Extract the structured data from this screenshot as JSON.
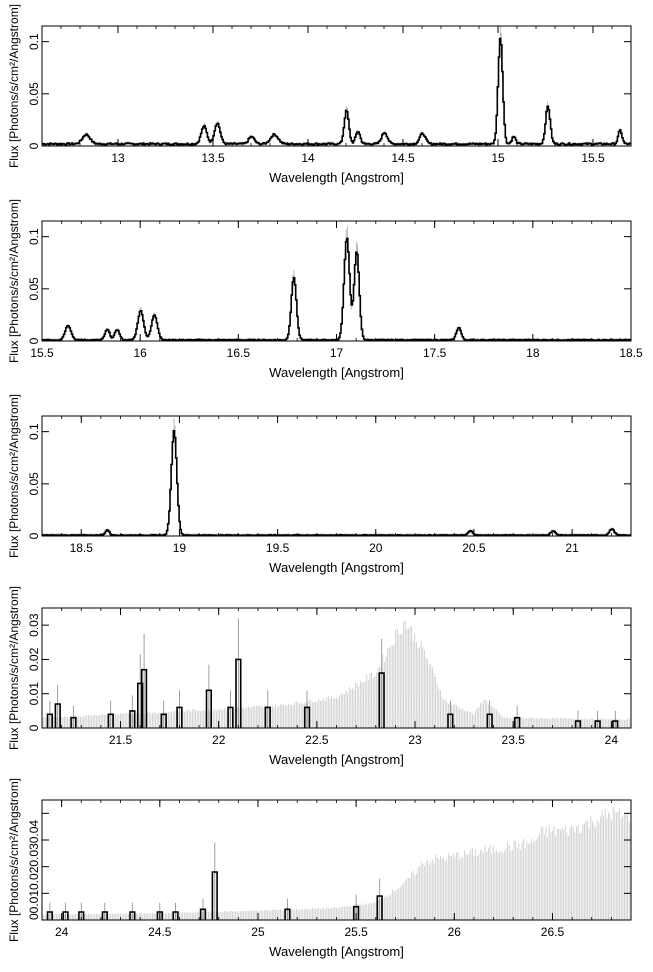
{
  "chart_data": [
    {
      "type": "line",
      "xlabel": "Wavelength [Angstrom]",
      "ylabel": "Flux [Photons/s/cm²/Angstrom]",
      "xlim": [
        12.6,
        15.7
      ],
      "ylim": [
        0,
        0.115
      ],
      "xticks": [
        "13",
        "13.5",
        "14",
        "14.5",
        "15",
        "15.5"
      ],
      "yticks": [
        "0",
        "0.05",
        "0.1"
      ],
      "background_level": 0.002,
      "peaks": [
        {
          "x": 12.83,
          "y": 0.009,
          "w": 0.02
        },
        {
          "x": 13.45,
          "y": 0.017,
          "w": 0.015
        },
        {
          "x": 13.52,
          "y": 0.02,
          "w": 0.015
        },
        {
          "x": 13.7,
          "y": 0.007,
          "w": 0.015
        },
        {
          "x": 13.82,
          "y": 0.009,
          "w": 0.02
        },
        {
          "x": 14.2,
          "y": 0.032,
          "w": 0.012
        },
        {
          "x": 14.26,
          "y": 0.012,
          "w": 0.012
        },
        {
          "x": 14.4,
          "y": 0.011,
          "w": 0.015
        },
        {
          "x": 14.6,
          "y": 0.01,
          "w": 0.015
        },
        {
          "x": 15.01,
          "y": 0.102,
          "w": 0.012
        },
        {
          "x": 15.08,
          "y": 0.007,
          "w": 0.01
        },
        {
          "x": 15.26,
          "y": 0.036,
          "w": 0.012
        },
        {
          "x": 15.64,
          "y": 0.013,
          "w": 0.01
        }
      ]
    },
    {
      "type": "line",
      "xlabel": "Wavelength [Angstrom]",
      "ylabel": "Flux [Photons/s/cm²/Angstrom]",
      "xlim": [
        15.5,
        18.5
      ],
      "ylim": [
        0,
        0.115
      ],
      "xticks": [
        "15.5",
        "16",
        "16.5",
        "17",
        "17.5",
        "18",
        "18.5"
      ],
      "yticks": [
        "0",
        "0.05",
        "0.1"
      ],
      "background_level": 0.001,
      "peaks": [
        {
          "x": 15.63,
          "y": 0.014,
          "w": 0.015
        },
        {
          "x": 15.83,
          "y": 0.01,
          "w": 0.012
        },
        {
          "x": 15.88,
          "y": 0.01,
          "w": 0.012
        },
        {
          "x": 16.0,
          "y": 0.028,
          "w": 0.015
        },
        {
          "x": 16.07,
          "y": 0.024,
          "w": 0.015
        },
        {
          "x": 16.78,
          "y": 0.06,
          "w": 0.013
        },
        {
          "x": 17.05,
          "y": 0.098,
          "w": 0.014
        },
        {
          "x": 17.1,
          "y": 0.085,
          "w": 0.013
        },
        {
          "x": 17.62,
          "y": 0.012,
          "w": 0.012
        }
      ]
    },
    {
      "type": "line",
      "xlabel": "Wavelength [Angstrom]",
      "ylabel": "Flux [Photons/s/cm²/Angstrom]",
      "xlim": [
        18.3,
        21.3
      ],
      "ylim": [
        0,
        0.115
      ],
      "xticks": [
        "18.5",
        "19",
        "19.5",
        "20",
        "20.5",
        "21"
      ],
      "yticks": [
        "0",
        "0.05",
        "0.1"
      ],
      "background_level": 0.0008,
      "peaks": [
        {
          "x": 18.63,
          "y": 0.005,
          "w": 0.01
        },
        {
          "x": 18.97,
          "y": 0.1,
          "w": 0.014
        },
        {
          "x": 20.48,
          "y": 0.004,
          "w": 0.012
        },
        {
          "x": 20.9,
          "y": 0.004,
          "w": 0.012
        },
        {
          "x": 21.2,
          "y": 0.006,
          "w": 0.012
        }
      ]
    },
    {
      "type": "line",
      "xlabel": "Wavelength [Angstrom]",
      "ylabel": "Flux [Photons/s/cm²/Angstrom]",
      "xlim": [
        21.1,
        24.1
      ],
      "ylim": [
        0,
        0.035
      ],
      "xticks": [
        "21.5",
        "22",
        "22.5",
        "23",
        "23.5",
        "24"
      ],
      "yticks": [
        "0",
        "0.01",
        "0.02",
        "0.03"
      ],
      "error_band": [
        [
          21.1,
          0.003
        ],
        [
          21.5,
          0.004
        ],
        [
          22.0,
          0.0055
        ],
        [
          22.3,
          0.0065
        ],
        [
          22.6,
          0.009
        ],
        [
          22.8,
          0.016
        ],
        [
          22.9,
          0.027
        ],
        [
          22.95,
          0.031
        ],
        [
          23.05,
          0.022
        ],
        [
          23.15,
          0.008
        ],
        [
          23.3,
          0.004
        ],
        [
          23.35,
          0.0085
        ],
        [
          23.45,
          0.003
        ],
        [
          24.1,
          0.0025
        ]
      ],
      "steps": [
        [
          21.14,
          0.004
        ],
        [
          21.18,
          0.007
        ],
        [
          21.26,
          0.003
        ],
        [
          21.45,
          0.004
        ],
        [
          21.56,
          0.005
        ],
        [
          21.6,
          0.013
        ],
        [
          21.62,
          0.017
        ],
        [
          21.72,
          0.004
        ],
        [
          21.8,
          0.006
        ],
        [
          21.95,
          0.011
        ],
        [
          22.06,
          0.006
        ],
        [
          22.1,
          0.02
        ],
        [
          22.25,
          0.006
        ],
        [
          22.45,
          0.006
        ],
        [
          22.83,
          0.016
        ],
        [
          23.18,
          0.004
        ],
        [
          23.38,
          0.004
        ],
        [
          23.52,
          0.003
        ],
        [
          23.83,
          0.002
        ],
        [
          23.93,
          0.002
        ],
        [
          24.02,
          0.002
        ]
      ]
    },
    {
      "type": "line",
      "xlabel": "Wavelength [Angstrom]",
      "ylabel": "Flux [Photons/s/cm²/Angstrom]",
      "xlim": [
        23.9,
        26.9
      ],
      "ylim": [
        0,
        0.045
      ],
      "xticks": [
        "24",
        "24.5",
        "25",
        "25.5",
        "26",
        "26.5"
      ],
      "yticks": [
        "0",
        "0.01",
        "0.02",
        "0.03",
        "0.04"
      ],
      "ytick_labels_joined": [
        "00.010.020.030.04"
      ],
      "error_band": [
        [
          23.9,
          0.002
        ],
        [
          24.5,
          0.0025
        ],
        [
          25.0,
          0.0035
        ],
        [
          25.4,
          0.0045
        ],
        [
          25.6,
          0.0065
        ],
        [
          25.75,
          0.014
        ],
        [
          25.85,
          0.022
        ],
        [
          26.0,
          0.024
        ],
        [
          26.4,
          0.029
        ],
        [
          26.45,
          0.033
        ],
        [
          26.6,
          0.034
        ],
        [
          26.8,
          0.04
        ],
        [
          26.9,
          0.038
        ]
      ],
      "steps": [
        [
          23.94,
          0.003
        ],
        [
          24.02,
          0.003
        ],
        [
          24.1,
          0.003
        ],
        [
          24.22,
          0.003
        ],
        [
          24.36,
          0.003
        ],
        [
          24.5,
          0.003
        ],
        [
          24.58,
          0.003
        ],
        [
          24.72,
          0.004
        ],
        [
          24.78,
          0.018
        ],
        [
          25.15,
          0.004
        ],
        [
          25.5,
          0.005
        ],
        [
          25.62,
          0.009
        ]
      ]
    }
  ]
}
